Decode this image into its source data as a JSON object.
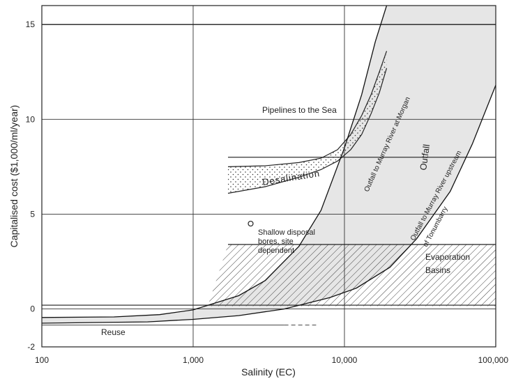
{
  "chart_data": {
    "type": "line",
    "title": "",
    "xlabel": "Salinity (EC)",
    "ylabel": "Capitalised cost ($1,000/ml/year)",
    "x_scale": "log",
    "xlim": [
      100,
      100000
    ],
    "ylim": [
      -2,
      16
    ],
    "grid": true,
    "x_ticks": [
      {
        "value": 100,
        "label": "100"
      },
      {
        "value": 1000,
        "label": "1,000"
      },
      {
        "value": 10000,
        "label": "10,000"
      },
      {
        "value": 100000,
        "label": "100,000"
      }
    ],
    "y_ticks": [
      {
        "value": -2,
        "label": "-2"
      },
      {
        "value": 0,
        "label": "0"
      },
      {
        "value": 5,
        "label": "5"
      },
      {
        "value": 10,
        "label": "10"
      },
      {
        "value": 15,
        "label": "15"
      }
    ],
    "series": [
      {
        "name": "Pipelines to the Sea",
        "x": [
          100,
          100000
        ],
        "y": [
          15,
          15
        ]
      },
      {
        "name": "Outfall to Murray River at Morgan",
        "x": [
          100,
          300,
          600,
          1000,
          2000,
          3000,
          5000,
          7000,
          10000,
          13000,
          16000,
          19000
        ],
        "y": [
          -0.45,
          -0.42,
          -0.3,
          -0.05,
          0.7,
          1.5,
          3.3,
          5.2,
          8.5,
          11.3,
          14.1,
          16
        ]
      },
      {
        "name": "Outfall to Murray River upstream of Tonumbarry",
        "x": [
          100,
          500,
          1000,
          2000,
          4000,
          8000,
          12000,
          20000,
          30000,
          50000,
          70000,
          100000
        ],
        "y": [
          -0.75,
          -0.68,
          -0.55,
          -0.35,
          0.0,
          0.6,
          1.1,
          2.2,
          3.7,
          6.2,
          8.7,
          11.8
        ]
      },
      {
        "name": "Desalination",
        "x": [
          1700,
          3000,
          5000,
          7000,
          9000,
          11000,
          13000,
          15000,
          17000,
          19000
        ],
        "y_low": [
          6.1,
          6.45,
          6.95,
          7.35,
          7.8,
          8.4,
          9.2,
          10.3,
          11.4,
          12.7
        ],
        "y_high": [
          7.5,
          7.55,
          7.72,
          7.95,
          8.4,
          9.2,
          10.2,
          11.3,
          12.5,
          13.6
        ]
      },
      {
        "name": "Evaporation Basins",
        "x": [
          1250,
          100000
        ],
        "y_low": [
          0.15,
          0.15
        ],
        "y_high": [
          3.4,
          3.4
        ]
      },
      {
        "name": "Reuse",
        "x": [
          100,
          4000
        ],
        "y": [
          -0.85,
          -0.85
        ]
      }
    ],
    "reference_lines": [
      {
        "y": 8.0,
        "x": [
          1700,
          100000
        ]
      },
      {
        "y": 0.2,
        "x": [
          100,
          100000
        ]
      }
    ],
    "points": [
      {
        "x": 2400,
        "y": 4.5
      }
    ],
    "annotations": [
      {
        "text": "Pipelines to the Sea"
      },
      {
        "text": "Desalination"
      },
      {
        "text": "Shallow disposal"
      },
      {
        "text": "bores, site"
      },
      {
        "text": "dependent"
      },
      {
        "text": "Outfall"
      },
      {
        "text": "Evaporation"
      },
      {
        "text": "Basins"
      },
      {
        "text": "Reuse"
      },
      {
        "text": "Outfall to Murray River at Morgan"
      },
      {
        "text": "Outfall to Murray River upstream"
      },
      {
        "text": "of Tonumbarry"
      }
    ]
  },
  "colors": {
    "axis": "#222222",
    "grid": "#333333",
    "shade": "#e6e6e6",
    "hatch": "#444444"
  }
}
